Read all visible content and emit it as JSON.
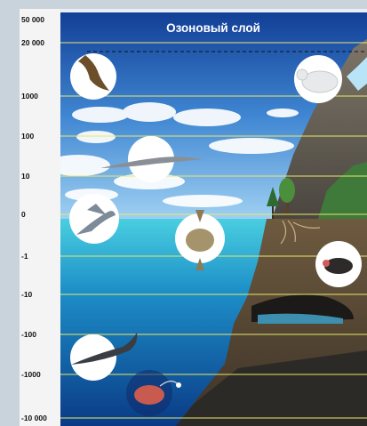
{
  "title": "Озоновый слой",
  "scale_labels": [
    "50 000",
    "20 000",
    "1000",
    "100",
    "10",
    "0",
    "-1",
    "-10",
    "-100",
    "-1000",
    "-10 000"
  ],
  "icons": [
    "eagle-icon",
    "bird-icon",
    "flying-fish-icon",
    "sunfish-icon",
    "whale-icon",
    "anglerfish-icon",
    "polar-bear-icon",
    "mole-icon",
    "cave-icon",
    "tree-icon"
  ],
  "colors": {
    "sky_top": "#1a50a8",
    "sky_bottom": "#7fb9e8",
    "water_top": "#3ec6d8",
    "water_bottom": "#0a3f8c",
    "guide": "#e8e86a"
  }
}
